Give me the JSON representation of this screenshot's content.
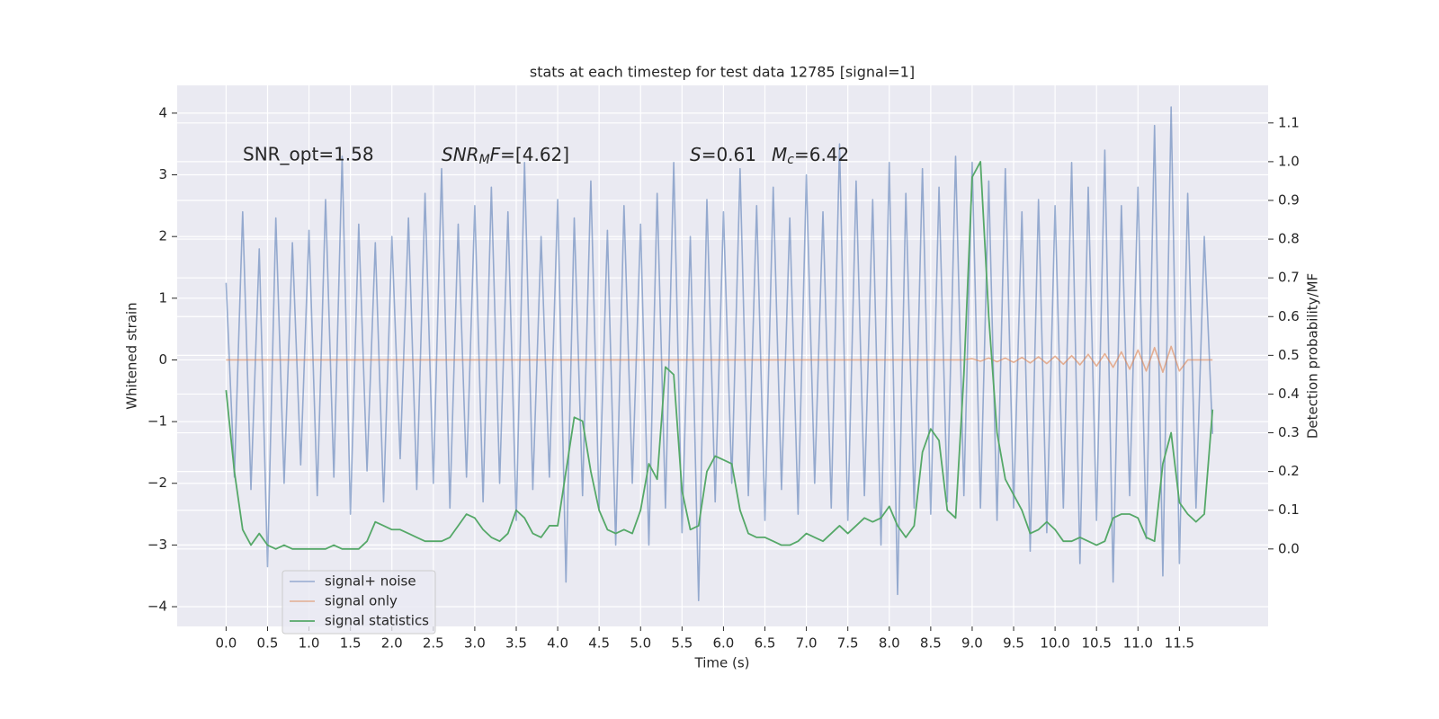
{
  "chart_data": {
    "type": "line",
    "title": "stats at each timestep for test data 12785 [signal=1]",
    "xlabel": "Time (s)",
    "ylabel": "Whitened strain",
    "y2label": "Detection probability/MF",
    "annotations": [
      "SNR_opt=1.58",
      "SNR",
      "M",
      "F",
      "=[4.62]",
      "S",
      "=0.61",
      "M",
      "c",
      "=6.42"
    ],
    "legend": "lower left",
    "grid": true,
    "xlim": [
      -0.59,
      12.57
    ],
    "ylim": [
      -4.32,
      4.45
    ],
    "y2lim": [
      -0.2,
      1.197
    ],
    "xticks": [
      {
        "value": 0,
        "label": "0.0"
      },
      0.5,
      {
        "value": 1,
        "label": "1.0"
      },
      1.5,
      {
        "value": 2,
        "label": "2.0"
      },
      2.5,
      {
        "value": 3,
        "label": "3.0"
      },
      3.5,
      {
        "value": 4,
        "label": "4.0"
      },
      4.5,
      {
        "value": 5,
        "label": "5.0"
      },
      5.5,
      {
        "value": 6,
        "label": "6.0"
      },
      6.5,
      {
        "value": 7,
        "label": "7.0"
      },
      7.5,
      {
        "value": 8,
        "label": "8.0"
      },
      8.5,
      {
        "value": 9,
        "label": "9.0"
      },
      9.5,
      {
        "value": 10,
        "label": "10.0"
      },
      10.5,
      {
        "value": 11,
        "label": "11.0"
      },
      11.5
    ],
    "yticks": [
      {
        "value": -4,
        "label": "−4"
      },
      {
        "value": -3,
        "label": "−3"
      },
      {
        "value": -2,
        "label": "−2"
      },
      {
        "value": -1,
        "label": "−1"
      },
      0,
      1,
      2,
      3,
      4
    ],
    "y2ticks": [
      {
        "value": 0,
        "label": "0.0"
      },
      0.1,
      0.2,
      0.3,
      0.4,
      0.5,
      0.6,
      0.7,
      0.8,
      0.9,
      {
        "value": 1,
        "label": "1.0"
      },
      1.1
    ],
    "x": [
      0,
      0.1,
      0.2,
      0.3,
      0.4,
      0.5,
      0.6,
      0.7,
      0.8,
      0.9,
      1,
      1.1,
      1.2,
      1.3,
      1.4,
      1.5,
      1.6,
      1.7,
      1.8,
      1.9,
      2,
      2.1,
      2.2,
      2.3,
      2.4,
      2.5,
      2.6,
      2.7,
      2.8,
      2.9,
      3,
      3.1,
      3.2,
      3.3,
      3.4,
      3.5,
      3.6,
      3.7,
      3.8,
      3.9,
      4,
      4.1,
      4.2,
      4.3,
      4.4,
      4.5,
      4.6,
      4.7,
      4.8,
      4.9,
      5,
      5.1,
      5.2,
      5.3,
      5.4,
      5.5,
      5.6,
      5.7,
      5.8,
      5.9,
      6,
      6.1,
      6.2,
      6.3,
      6.4,
      6.5,
      6.6,
      6.7,
      6.8,
      6.9,
      7,
      7.1,
      7.2,
      7.3,
      7.4,
      7.5,
      7.6,
      7.7,
      7.8,
      7.9,
      8,
      8.1,
      8.2,
      8.3,
      8.4,
      8.5,
      8.6,
      8.7,
      8.8,
      8.9,
      9,
      9.1,
      9.2,
      9.3,
      9.4,
      9.5,
      9.6,
      9.7,
      9.8,
      9.9,
      10,
      10.1,
      10.2,
      10.3,
      10.4,
      10.5,
      10.6,
      10.7,
      10.8,
      10.9,
      11,
      11.1,
      11.2,
      11.3,
      11.4,
      11.5,
      11.6,
      11.7,
      11.8,
      11.9
    ],
    "series": [
      {
        "name": "signal+ noise",
        "color": "#4c72b0",
        "values": [
          1.25,
          -1.9,
          2.4,
          -2.1,
          1.8,
          -3.35,
          2.3,
          -2.0,
          1.9,
          -1.7,
          2.1,
          -2.2,
          2.6,
          -1.9,
          3.3,
          -2.5,
          2.2,
          -1.8,
          1.9,
          -2.3,
          2.0,
          -1.6,
          2.3,
          -2.1,
          2.7,
          -2.0,
          3.1,
          -2.4,
          2.2,
          -1.9,
          2.5,
          -2.3,
          2.8,
          -2.0,
          2.4,
          -2.6,
          3.2,
          -2.1,
          2.0,
          -1.9,
          2.6,
          -3.6,
          2.3,
          -2.2,
          2.9,
          -2.4,
          2.1,
          -3.0,
          2.5,
          -2.0,
          2.2,
          -3.0,
          2.7,
          -2.4,
          3.2,
          -2.8,
          2.0,
          -3.9,
          2.6,
          -2.3,
          2.4,
          -2.0,
          3.1,
          -2.2,
          2.5,
          -2.6,
          2.8,
          -2.1,
          2.3,
          -2.5,
          3.0,
          -2.0,
          2.4,
          -2.4,
          3.5,
          -2.6,
          2.9,
          -2.2,
          2.6,
          -3.0,
          3.2,
          -3.8,
          2.7,
          -2.4,
          3.1,
          -2.5,
          2.8,
          -2.3,
          3.3,
          -2.2,
          3.2,
          -2.4,
          2.9,
          -2.6,
          3.1,
          -2.4,
          2.4,
          -3.1,
          2.6,
          -2.8,
          2.5,
          -2.4,
          3.2,
          -3.3,
          2.8,
          -2.6,
          3.4,
          -3.6,
          2.5,
          -2.2,
          2.8,
          -2.9,
          3.8,
          -3.5,
          4.1,
          -3.3,
          2.7,
          -2.4,
          2.0,
          -1.2
        ]
      },
      {
        "name": "signal only",
        "color": "#dd8452",
        "values": [
          0,
          0,
          0,
          0,
          0,
          0,
          0,
          0,
          0,
          0,
          0,
          0,
          0,
          0,
          0,
          0,
          0,
          0,
          0,
          0,
          0,
          0,
          0,
          0,
          0,
          0,
          0,
          0,
          0,
          0,
          0,
          0,
          0,
          0,
          0,
          0,
          0,
          0,
          0,
          0,
          0,
          0,
          0,
          0,
          0,
          0,
          0,
          0,
          0,
          0,
          0,
          0,
          0,
          0,
          0,
          0,
          0,
          0,
          0,
          0,
          0,
          0,
          0,
          0,
          0,
          0,
          0,
          0,
          0,
          0,
          0,
          0,
          0,
          0,
          0,
          0,
          0,
          0,
          0,
          0,
          0,
          0,
          0,
          0,
          0,
          0,
          0,
          0,
          0,
          0,
          0.02,
          -0.02,
          0.03,
          -0.03,
          0.03,
          -0.04,
          0.04,
          -0.05,
          0.05,
          -0.06,
          0.06,
          -0.07,
          0.07,
          -0.08,
          0.09,
          -0.1,
          0.1,
          -0.12,
          0.13,
          -0.15,
          0.16,
          -0.18,
          0.2,
          -0.2,
          0.22,
          -0.18,
          0,
          0,
          0,
          0
        ]
      },
      {
        "name": "signal statistics",
        "color": "#55a868",
        "axis": "y2",
        "values": [
          0.41,
          0.2,
          0.05,
          0.01,
          0.04,
          0.01,
          0.0,
          0.01,
          0.0,
          0.0,
          0.0,
          0.0,
          0.0,
          0.01,
          0.0,
          0.0,
          0.0,
          0.02,
          0.07,
          0.06,
          0.05,
          0.05,
          0.04,
          0.03,
          0.02,
          0.02,
          0.02,
          0.03,
          0.06,
          0.09,
          0.08,
          0.05,
          0.03,
          0.02,
          0.04,
          0.1,
          0.08,
          0.04,
          0.03,
          0.06,
          0.06,
          0.2,
          0.34,
          0.33,
          0.2,
          0.1,
          0.05,
          0.04,
          0.05,
          0.04,
          0.1,
          0.22,
          0.18,
          0.47,
          0.45,
          0.15,
          0.05,
          0.06,
          0.2,
          0.24,
          0.23,
          0.22,
          0.1,
          0.04,
          0.03,
          0.03,
          0.02,
          0.01,
          0.01,
          0.02,
          0.04,
          0.03,
          0.02,
          0.04,
          0.06,
          0.04,
          0.06,
          0.08,
          0.07,
          0.08,
          0.11,
          0.06,
          0.03,
          0.06,
          0.25,
          0.31,
          0.28,
          0.1,
          0.08,
          0.45,
          0.96,
          1.0,
          0.6,
          0.3,
          0.18,
          0.14,
          0.1,
          0.04,
          0.05,
          0.07,
          0.05,
          0.02,
          0.02,
          0.03,
          0.02,
          0.01,
          0.02,
          0.08,
          0.09,
          0.09,
          0.08,
          0.03,
          0.02,
          0.22,
          0.3,
          0.12,
          0.09,
          0.07,
          0.09,
          0.36
        ]
      }
    ]
  }
}
